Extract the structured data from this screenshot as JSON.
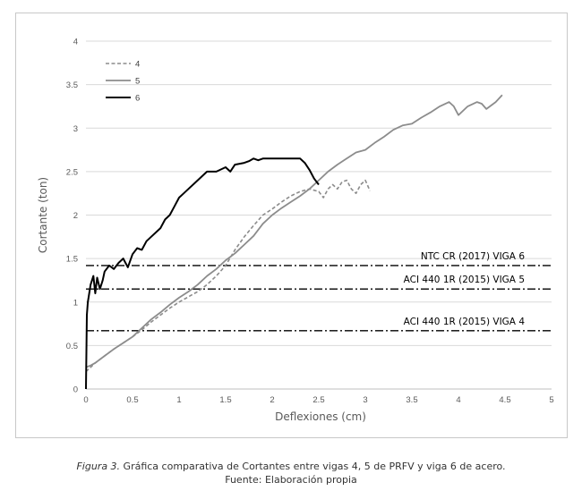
{
  "caption": {
    "figure_label": "Figura 3.",
    "text": " Gráfica comparativa de Cortantes entre vigas 4, 5 de PRFV y viga 6 de acero.",
    "source": "Fuente: Elaboración propia"
  },
  "colors": {
    "series_4": "#8c8c8c",
    "series_5": "#8c8c8c",
    "series_6": "#000000",
    "reference_lines": "#000000",
    "gridlines": "#d9d9d9",
    "axis_text": "#595959"
  },
  "chart_data": {
    "type": "line",
    "title": "",
    "xlabel": "Deflexiones (cm)",
    "ylabel": "Cortante (ton)",
    "xlim": [
      0,
      5
    ],
    "ylim": [
      0,
      4
    ],
    "xticks": [
      0,
      0.5,
      1,
      1.5,
      2,
      2.5,
      3,
      3.5,
      4,
      4.5,
      5
    ],
    "xtick_labels": [
      "0",
      "0.5",
      "1",
      "1.5",
      "2",
      "2.5",
      "3",
      "3.5",
      "4",
      "4.5",
      "5"
    ],
    "yticks": [
      0,
      0.5,
      1,
      1.5,
      2,
      2.5,
      3,
      3.5,
      4
    ],
    "ytick_labels": [
      "0",
      "0.5",
      "1",
      "1.5",
      "2",
      "2.5",
      "3",
      "3.5",
      "4"
    ],
    "grid": "horizontal",
    "legend_position": "top-left",
    "series": [
      {
        "name": "4",
        "style": "dashed",
        "x": [
          0,
          0.02,
          0.1,
          0.2,
          0.3,
          0.4,
          0.5,
          0.6,
          0.7,
          0.8,
          0.9,
          1.0,
          1.1,
          1.2,
          1.3,
          1.4,
          1.5,
          1.6,
          1.7,
          1.8,
          1.9,
          2.0,
          2.1,
          2.2,
          2.3,
          2.4,
          2.5,
          2.55,
          2.6,
          2.65,
          2.7,
          2.75,
          2.8,
          2.85,
          2.9,
          2.95,
          3.0,
          3.05
        ],
        "y": [
          0.2,
          0.22,
          0.3,
          0.38,
          0.46,
          0.53,
          0.6,
          0.68,
          0.77,
          0.85,
          0.93,
          1.0,
          1.06,
          1.12,
          1.2,
          1.3,
          1.42,
          1.6,
          1.75,
          1.88,
          2.0,
          2.07,
          2.15,
          2.22,
          2.27,
          2.3,
          2.27,
          2.2,
          2.3,
          2.35,
          2.3,
          2.38,
          2.4,
          2.3,
          2.25,
          2.35,
          2.4,
          2.28
        ]
      },
      {
        "name": "5",
        "style": "solid",
        "x": [
          0,
          0.05,
          0.1,
          0.2,
          0.3,
          0.4,
          0.5,
          0.6,
          0.7,
          0.8,
          0.9,
          1.0,
          1.1,
          1.2,
          1.3,
          1.4,
          1.5,
          1.6,
          1.7,
          1.8,
          1.9,
          2.0,
          2.1,
          2.2,
          2.3,
          2.4,
          2.5,
          2.6,
          2.7,
          2.8,
          2.9,
          3.0,
          3.1,
          3.2,
          3.3,
          3.4,
          3.5,
          3.6,
          3.7,
          3.8,
          3.9,
          3.95,
          4.0,
          4.1,
          4.2,
          4.25,
          4.3,
          4.4,
          4.47
        ],
        "y": [
          0.25,
          0.27,
          0.3,
          0.38,
          0.46,
          0.53,
          0.6,
          0.7,
          0.8,
          0.88,
          0.97,
          1.05,
          1.12,
          1.2,
          1.3,
          1.38,
          1.48,
          1.56,
          1.66,
          1.76,
          1.9,
          2.0,
          2.08,
          2.15,
          2.22,
          2.3,
          2.4,
          2.5,
          2.58,
          2.65,
          2.72,
          2.75,
          2.83,
          2.9,
          2.98,
          3.03,
          3.05,
          3.12,
          3.18,
          3.25,
          3.3,
          3.25,
          3.15,
          3.25,
          3.3,
          3.28,
          3.22,
          3.3,
          3.38
        ]
      },
      {
        "name": "6",
        "style": "solid",
        "x": [
          0,
          0.01,
          0.02,
          0.05,
          0.08,
          0.1,
          0.12,
          0.15,
          0.18,
          0.2,
          0.25,
          0.3,
          0.35,
          0.4,
          0.45,
          0.5,
          0.55,
          0.6,
          0.65,
          0.7,
          0.8,
          0.85,
          0.9,
          0.95,
          1.0,
          1.05,
          1.1,
          1.2,
          1.3,
          1.4,
          1.5,
          1.55,
          1.6,
          1.7,
          1.75,
          1.8,
          1.85,
          1.9,
          2.0,
          2.1,
          2.2,
          2.3,
          2.35,
          2.4,
          2.45,
          2.5
        ],
        "y": [
          0,
          0.85,
          1.0,
          1.2,
          1.3,
          1.1,
          1.28,
          1.15,
          1.25,
          1.35,
          1.42,
          1.38,
          1.45,
          1.5,
          1.4,
          1.55,
          1.62,
          1.6,
          1.7,
          1.75,
          1.85,
          1.95,
          2.0,
          2.1,
          2.2,
          2.25,
          2.3,
          2.4,
          2.5,
          2.5,
          2.55,
          2.5,
          2.58,
          2.6,
          2.62,
          2.65,
          2.63,
          2.65,
          2.65,
          2.65,
          2.65,
          2.65,
          2.6,
          2.52,
          2.42,
          2.35
        ]
      }
    ],
    "reference_lines": [
      {
        "y": 1.42,
        "label": "NTC CR (2017) VIGA 6",
        "style": "dash-dot"
      },
      {
        "y": 1.15,
        "label": "ACI 440 1R (2015) VIGA 5",
        "style": "dash-dot"
      },
      {
        "y": 0.67,
        "label": "ACI 440 1R (2015) VIGA 4",
        "style": "dash-dot"
      }
    ]
  }
}
